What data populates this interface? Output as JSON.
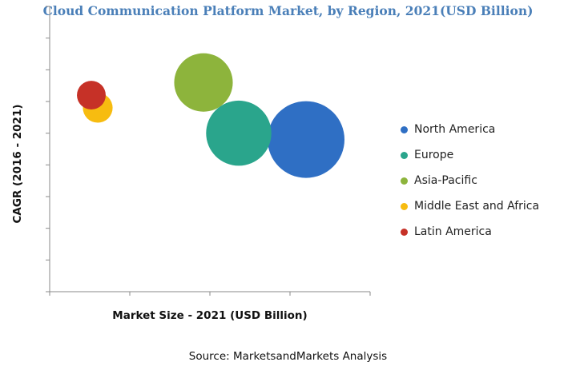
{
  "chart_data": {
    "type": "bubble",
    "title": "Cloud Communication Platform Market, by Region, 2021(USD Billion)",
    "xlabel": "Market Size - 2021 (USD Billion)",
    "ylabel": "CAGR (2016 - 2021)",
    "x_tick_labels_shown": false,
    "y_tick_labels_shown": false,
    "grid": false,
    "legend_position": "right",
    "series": [
      {
        "name": "North America",
        "x": 8.0,
        "y": 4.8,
        "size": 1.0,
        "color": "#2f6fc4"
      },
      {
        "name": "Europe",
        "x": 5.9,
        "y": 5.0,
        "size": 0.72,
        "color": "#2aa58c"
      },
      {
        "name": "Asia-Pacific",
        "x": 4.8,
        "y": 6.6,
        "size": 0.58,
        "color": "#8db43c"
      },
      {
        "name": "Middle East and Africa",
        "x": 1.5,
        "y": 5.8,
        "size": 0.15,
        "color": "#f7bc10"
      },
      {
        "name": "Latin America",
        "x": 1.3,
        "y": 6.2,
        "size": 0.14,
        "color": "#c63127"
      }
    ]
  },
  "source": "Source: MarketsandMarkets Analysis"
}
